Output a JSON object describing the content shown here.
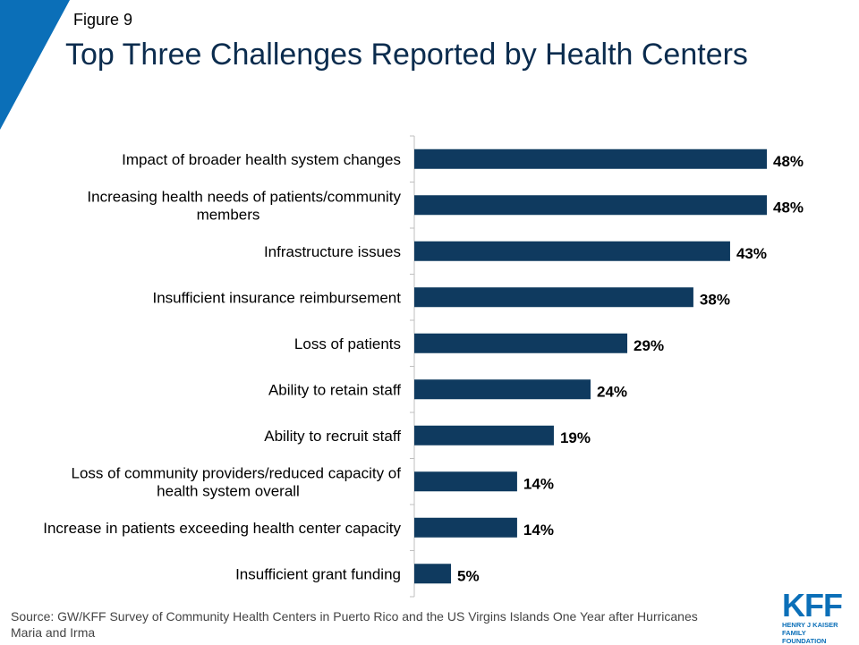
{
  "figure_label": "Figure 9",
  "colors": {
    "bar": "#0f3a5f",
    "corner": "#0b6fb8",
    "title": "#0b2c4e"
  },
  "chart_data": {
    "type": "bar",
    "orientation": "horizontal",
    "title": "Top Three Challenges Reported by Health Centers",
    "categories": [
      [
        "Impact of broader health system changes"
      ],
      [
        "Increasing health needs of patients/community",
        "members"
      ],
      [
        "Infrastructure issues"
      ],
      [
        "Insufficient insurance reimbursement"
      ],
      [
        "Loss of patients"
      ],
      [
        "Ability to retain staff"
      ],
      [
        "Ability to recruit staff"
      ],
      [
        "Loss of community providers/reduced capacity of",
        "health system overall"
      ],
      [
        "Increase in patients exceeding health center capacity"
      ],
      [
        "Insufficient grant funding"
      ]
    ],
    "values": [
      48,
      48,
      43,
      38,
      29,
      24,
      19,
      14,
      14,
      5
    ],
    "value_labels": [
      "48%",
      "48%",
      "43%",
      "38%",
      "29%",
      "24%",
      "19%",
      "14%",
      "14%",
      "5%"
    ],
    "xlim": [
      0,
      50
    ]
  },
  "source": "Source: GW/KFF Survey of Community Health Centers in Puerto Rico and the US Virgins Islands One Year after Hurricanes Maria and Irma",
  "logo": {
    "mark": "KFF",
    "line1": "HENRY J KAISER",
    "line2": "FAMILY FOUNDATION"
  }
}
